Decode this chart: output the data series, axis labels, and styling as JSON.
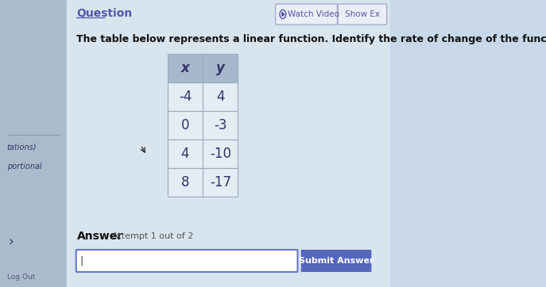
{
  "title_text": "Question",
  "description": "The table below represents a linear function. Identify the rate of change of the function.",
  "watch_video_text": "Watch Video",
  "show_ex_text": "Show Ex",
  "table_headers": [
    "x",
    "y"
  ],
  "table_data": [
    [
      "-4",
      "4"
    ],
    [
      "0",
      "-3"
    ],
    [
      "4",
      "-10"
    ],
    [
      "8",
      "-17"
    ]
  ],
  "answer_label": "Answer",
  "attempt_text": "Attempt 1 out of 2",
  "submit_text": "Submit Answer",
  "left_sidebar_texts": [
    "tations)",
    "portional"
  ],
  "bg_color": "#c8d8e8",
  "sidebar_color": "#aabccc",
  "main_bg": "#d8e4ee",
  "table_header_bg": "#a8b8cc",
  "table_row_bg": "#e4ecf4",
  "table_border": "#9aaabb",
  "title_color": "#5555aa",
  "desc_color": "#111111",
  "text_color": "#333366",
  "button_bg": "#eaeff5",
  "submit_btn_bg": "#5566bb",
  "submit_btn_text": "#ffffff",
  "input_box_border": "#6677cc",
  "answer_color": "#111111",
  "log_out_color": "#555577"
}
